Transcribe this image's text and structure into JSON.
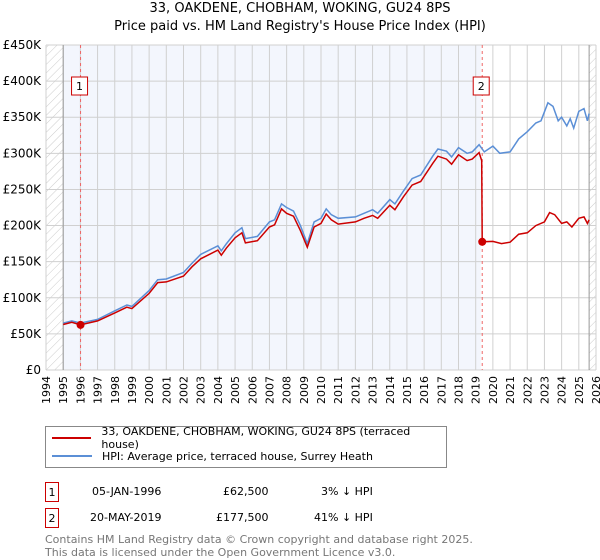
{
  "chart_data": {
    "type": "line",
    "title": "33, OAKDENE, CHOBHAM, WOKING, GU24 8PS",
    "subtitle": "Price paid vs. HM Land Registry's House Price Index (HPI)",
    "xlim": [
      1994,
      2026
    ],
    "ylim": [
      0,
      450000
    ],
    "x_ticks": [
      "1994",
      "1995",
      "1996",
      "1997",
      "1998",
      "1999",
      "2000",
      "2001",
      "2002",
      "2003",
      "2004",
      "2005",
      "2006",
      "2007",
      "2008",
      "2009",
      "2010",
      "2011",
      "2012",
      "2013",
      "2014",
      "2015",
      "2016",
      "2017",
      "2018",
      "2019",
      "2020",
      "2021",
      "2022",
      "2023",
      "2024",
      "2025",
      "2026"
    ],
    "y_ticks": [
      {
        "value": 0,
        "label": "£0"
      },
      {
        "value": 50000,
        "label": "£50K"
      },
      {
        "value": 100000,
        "label": "£100K"
      },
      {
        "value": 150000,
        "label": "£150K"
      },
      {
        "value": 200000,
        "label": "£200K"
      },
      {
        "value": 250000,
        "label": "£250K"
      },
      {
        "value": 300000,
        "label": "£300K"
      },
      {
        "value": 350000,
        "label": "£350K"
      },
      {
        "value": 400000,
        "label": "£400K"
      },
      {
        "value": 450000,
        "label": "£450K"
      }
    ],
    "grid": true,
    "data_range": [
      1995,
      2025.6
    ],
    "shaded_range": [
      1995,
      2019.3
    ],
    "series": [
      {
        "name": "33, OAKDENE, CHOBHAM, WOKING, GU24 8PS (terraced house)",
        "color": "#cc0000",
        "x": [
          1995,
          1995.5,
          1996,
          1997,
          1998,
          1998.7,
          1999,
          2000,
          2000.5,
          2001,
          2002,
          2002.5,
          2003,
          2004,
          2004.2,
          2004.5,
          2005,
          2005.4,
          2005.6,
          2006.3,
          2007,
          2007.3,
          2007.7,
          2008,
          2008.4,
          2008.8,
          2009.2,
          2009.6,
          2010,
          2010.3,
          2010.6,
          2011,
          2012,
          2012.5,
          2013,
          2013.3,
          2014,
          2014.3,
          2014.8,
          2015.3,
          2015.8,
          2016.5,
          2016.8,
          2017.3,
          2017.6,
          2018,
          2018.5,
          2018.8,
          2019.2,
          2019.35,
          2019.38,
          2020,
          2020.5,
          2021,
          2021.5,
          2022,
          2022.5,
          2023,
          2023.3,
          2023.6,
          2024,
          2024.3,
          2024.6,
          2025,
          2025.3,
          2025.5,
          2025.6
        ],
        "y": [
          63000,
          66000,
          62500,
          68000,
          79000,
          87000,
          85000,
          106000,
          121000,
          122000,
          130000,
          143000,
          154000,
          166000,
          159000,
          169000,
          183000,
          190000,
          176000,
          179000,
          198000,
          201000,
          223000,
          217000,
          213000,
          193000,
          170000,
          198000,
          203000,
          216000,
          208000,
          202000,
          205000,
          210000,
          214000,
          210000,
          228000,
          222000,
          240000,
          256000,
          261000,
          286000,
          296000,
          292000,
          285000,
          298000,
          290000,
          292000,
          301000,
          290000,
          177500,
          178000,
          175000,
          177000,
          188000,
          190000,
          200000,
          205000,
          218000,
          215000,
          203000,
          205000,
          198000,
          210000,
          212000,
          203000,
          208000
        ]
      },
      {
        "name": "HPI: Average price, terraced house, Surrey Heath",
        "color": "#5b8fd6",
        "x": [
          1995,
          1995.5,
          1996,
          1997,
          1998,
          1998.7,
          1999,
          2000,
          2000.5,
          2001,
          2002,
          2002.5,
          2003,
          2004,
          2004.2,
          2004.5,
          2005,
          2005.4,
          2005.6,
          2006.3,
          2007,
          2007.3,
          2007.7,
          2008,
          2008.4,
          2008.8,
          2009.2,
          2009.6,
          2010,
          2010.3,
          2010.6,
          2011,
          2012,
          2012.5,
          2013,
          2013.3,
          2014,
          2014.3,
          2014.8,
          2015.3,
          2015.8,
          2016.5,
          2016.8,
          2017.3,
          2017.6,
          2018,
          2018.5,
          2018.8,
          2019.2,
          2019.5,
          2020,
          2020.4,
          2021,
          2021.5,
          2022,
          2022.5,
          2022.8,
          2023.2,
          2023.5,
          2023.8,
          2024,
          2024.3,
          2024.5,
          2024.7,
          2025,
          2025.3,
          2025.5,
          2025.6
        ],
        "y": [
          65000,
          68000,
          65000,
          70000,
          82000,
          90000,
          88000,
          110000,
          125000,
          126000,
          135000,
          148000,
          160000,
          172000,
          165000,
          175000,
          190000,
          197000,
          182000,
          185000,
          205000,
          208000,
          230000,
          225000,
          220000,
          200000,
          175000,
          205000,
          210000,
          223000,
          215000,
          210000,
          212000,
          217000,
          222000,
          217000,
          236000,
          230000,
          248000,
          265000,
          270000,
          296000,
          306000,
          303000,
          295000,
          308000,
          300000,
          302000,
          312000,
          302000,
          310000,
          300000,
          302000,
          320000,
          330000,
          342000,
          345000,
          370000,
          365000,
          345000,
          350000,
          338000,
          348000,
          335000,
          358000,
          362000,
          345000,
          355000
        ]
      }
    ],
    "sales": [
      {
        "id": "1",
        "date": "05-JAN-1996",
        "x": 1996.01,
        "price_value": 62500,
        "price": "£62,500",
        "hpi": "3% ↓ HPI"
      },
      {
        "id": "2",
        "date": "20-MAY-2019",
        "x": 2019.38,
        "price_value": 177500,
        "price": "£177,500",
        "hpi": "41% ↓ HPI"
      }
    ],
    "legend_position": "below"
  },
  "footer": {
    "line1": "Contains HM Land Registry data © Crown copyright and database right 2025.",
    "line2": "This data is licensed under the Open Government Licence v3.0."
  }
}
